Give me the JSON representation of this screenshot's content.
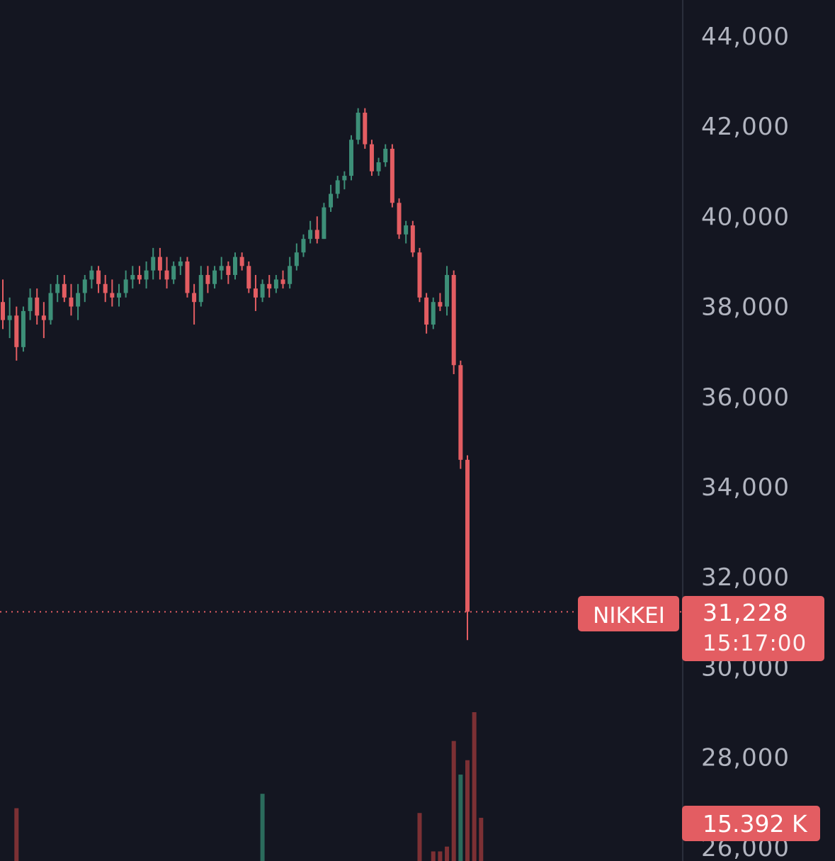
{
  "chart_data": {
    "type": "candlestick",
    "ylim": [
      25700,
      44800
    ],
    "y_ticks": [
      "44,000",
      "42,000",
      "40,000",
      "38,000",
      "36,000",
      "34,000",
      "32,000",
      "30,000",
      "28,000",
      "26,000"
    ],
    "y_tick_values": [
      44000,
      42000,
      40000,
      38000,
      36000,
      34000,
      32000,
      30000,
      28000,
      26000
    ],
    "series_label": "NIKKEI",
    "last_price": 31228,
    "last_price_label": "31,228",
    "last_time": "15:17:00",
    "volume_label": "15.392 K",
    "colors": {
      "background": "#141621",
      "up": "#3d8f78",
      "down": "#e35d62",
      "up_volume": "#2b6b5c",
      "down_volume": "#7c3034",
      "tag": "#e35d62",
      "axis_text": "#b1b4bf"
    },
    "candles": [
      [
        38100,
        38600,
        37500,
        37700
      ],
      [
        37700,
        38200,
        37300,
        37800
      ],
      [
        37800,
        38000,
        36800,
        37100
      ],
      [
        37100,
        38000,
        37000,
        37900
      ],
      [
        37900,
        38400,
        37700,
        38200
      ],
      [
        38200,
        38400,
        37600,
        37800
      ],
      [
        37800,
        38100,
        37300,
        37700
      ],
      [
        37700,
        38500,
        37600,
        38300
      ],
      [
        38300,
        38700,
        38100,
        38500
      ],
      [
        38500,
        38700,
        38100,
        38200
      ],
      [
        38200,
        38500,
        37800,
        38000
      ],
      [
        38000,
        38500,
        37700,
        38300
      ],
      [
        38300,
        38700,
        38100,
        38600
      ],
      [
        38600,
        38900,
        38400,
        38800
      ],
      [
        38800,
        38900,
        38300,
        38500
      ],
      [
        38500,
        38700,
        38100,
        38300
      ],
      [
        38300,
        38600,
        38000,
        38200
      ],
      [
        38200,
        38500,
        38000,
        38300
      ],
      [
        38300,
        38800,
        38200,
        38600
      ],
      [
        38600,
        38900,
        38400,
        38700
      ],
      [
        38700,
        38900,
        38500,
        38600
      ],
      [
        38600,
        39000,
        38400,
        38800
      ],
      [
        38800,
        39300,
        38600,
        39100
      ],
      [
        39100,
        39300,
        38600,
        38800
      ],
      [
        38800,
        39100,
        38400,
        38600
      ],
      [
        38600,
        39000,
        38500,
        38900
      ],
      [
        38900,
        39100,
        38700,
        39000
      ],
      [
        39000,
        39100,
        38200,
        38300
      ],
      [
        38300,
        38500,
        37600,
        38100
      ],
      [
        38100,
        38900,
        38000,
        38700
      ],
      [
        38700,
        38900,
        38300,
        38500
      ],
      [
        38500,
        38900,
        38400,
        38800
      ],
      [
        38800,
        39100,
        38600,
        38900
      ],
      [
        38900,
        39000,
        38500,
        38700
      ],
      [
        38700,
        39200,
        38600,
        39100
      ],
      [
        39100,
        39200,
        38800,
        38900
      ],
      [
        38900,
        39000,
        38300,
        38400
      ],
      [
        38400,
        38700,
        37900,
        38200
      ],
      [
        38200,
        38600,
        38100,
        38500
      ],
      [
        38500,
        38700,
        38200,
        38400
      ],
      [
        38400,
        38700,
        38300,
        38600
      ],
      [
        38600,
        38800,
        38400,
        38500
      ],
      [
        38500,
        39100,
        38400,
        38900
      ],
      [
        38900,
        39400,
        38800,
        39200
      ],
      [
        39200,
        39600,
        39100,
        39500
      ],
      [
        39500,
        39900,
        39400,
        39700
      ],
      [
        39700,
        40000,
        39400,
        39500
      ],
      [
        39500,
        40300,
        39500,
        40200
      ],
      [
        40200,
        40700,
        40100,
        40500
      ],
      [
        40500,
        40900,
        40400,
        40800
      ],
      [
        40800,
        41000,
        40600,
        40900
      ],
      [
        40900,
        41800,
        40800,
        41700
      ],
      [
        41700,
        42400,
        41600,
        42300
      ],
      [
        42300,
        42400,
        41500,
        41600
      ],
      [
        41600,
        41700,
        40900,
        41000
      ],
      [
        41000,
        41300,
        40900,
        41200
      ],
      [
        41200,
        41600,
        41100,
        41500
      ],
      [
        41500,
        41600,
        40200,
        40300
      ],
      [
        40300,
        40400,
        39500,
        39600
      ],
      [
        39600,
        39900,
        39400,
        39800
      ],
      [
        39800,
        39900,
        39100,
        39200
      ],
      [
        39200,
        39300,
        38100,
        38200
      ],
      [
        38200,
        38300,
        37400,
        37600
      ],
      [
        37600,
        38200,
        37500,
        38100
      ],
      [
        38100,
        38300,
        37900,
        38000
      ],
      [
        38000,
        38900,
        37800,
        38700
      ],
      [
        38700,
        38800,
        36500,
        36700
      ],
      [
        36700,
        36800,
        34400,
        34600
      ],
      [
        34600,
        34700,
        30600,
        31228
      ]
    ],
    "volume": [
      {
        "index": 2,
        "value": 1.1,
        "dir": "down"
      },
      {
        "index": 38,
        "value": 1.4,
        "dir": "up"
      },
      {
        "index": 61,
        "value": 1.0,
        "dir": "down"
      },
      {
        "index": 63,
        "value": 0.2,
        "dir": "down"
      },
      {
        "index": 64,
        "value": 0.2,
        "dir": "down"
      },
      {
        "index": 65,
        "value": 0.3,
        "dir": "down"
      },
      {
        "index": 66,
        "value": 2.5,
        "dir": "down"
      },
      {
        "index": 67,
        "value": 1.8,
        "dir": "up"
      },
      {
        "index": 68,
        "value": 2.1,
        "dir": "down"
      },
      {
        "index": 69,
        "value": 3.1,
        "dir": "down"
      },
      {
        "index": 70,
        "value": 0.9,
        "dir": "down"
      }
    ]
  }
}
